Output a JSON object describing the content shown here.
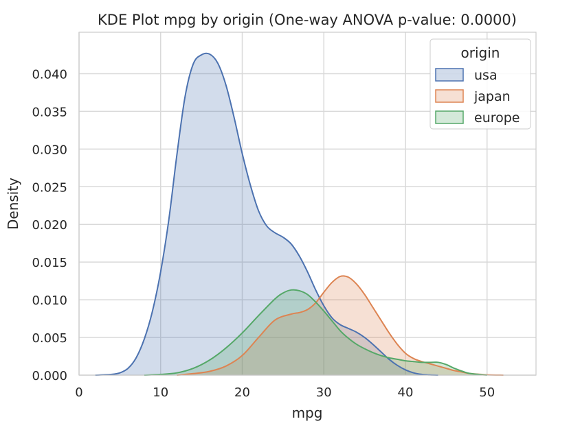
{
  "chart_data": {
    "type": "area",
    "title": "KDE Plot mpg by origin (One-way ANOVA p-value: 0.0000)",
    "xlabel": "mpg",
    "ylabel": "Density",
    "xlim": [
      0,
      56
    ],
    "ylim": [
      0,
      0.0455
    ],
    "xticks": [
      "0",
      "10",
      "20",
      "30",
      "40",
      "50"
    ],
    "yticks": [
      "0.000",
      "0.005",
      "0.010",
      "0.015",
      "0.020",
      "0.025",
      "0.030",
      "0.035",
      "0.040"
    ],
    "grid": true,
    "legend": {
      "title": "origin",
      "position": "top-right"
    },
    "series": [
      {
        "name": "usa",
        "color": "#4c72b0",
        "x": [
          2,
          4,
          5,
          6,
          7,
          8,
          9,
          10,
          11,
          12,
          13,
          14,
          15,
          16,
          17,
          18,
          19,
          20,
          21,
          22,
          23,
          24,
          25,
          26,
          27,
          28,
          29,
          30,
          31,
          32,
          33,
          34,
          35,
          36,
          37,
          38,
          39,
          40,
          41,
          42,
          43,
          44
        ],
        "y": [
          0.0,
          0.0001,
          0.0003,
          0.0009,
          0.0023,
          0.0048,
          0.0085,
          0.0137,
          0.0206,
          0.0293,
          0.037,
          0.0413,
          0.0425,
          0.0426,
          0.0414,
          0.0385,
          0.0342,
          0.0294,
          0.0252,
          0.0218,
          0.0198,
          0.0189,
          0.0183,
          0.0174,
          0.0158,
          0.0137,
          0.0113,
          0.0092,
          0.0076,
          0.0067,
          0.0062,
          0.0057,
          0.005,
          0.0041,
          0.0031,
          0.0021,
          0.0013,
          0.0007,
          0.0003,
          0.0001,
          3e-05,
          0.0
        ]
      },
      {
        "name": "japan",
        "color": "#dd8452",
        "x": [
          12,
          14,
          16,
          18,
          20,
          22,
          24,
          26,
          27,
          28,
          29,
          30,
          31,
          32,
          33,
          34,
          35,
          36,
          37,
          38,
          39,
          40,
          41,
          42,
          43,
          44,
          45,
          46,
          47,
          48,
          50,
          52
        ],
        "y": [
          0.0,
          0.0002,
          0.0005,
          0.0012,
          0.0026,
          0.005,
          0.0073,
          0.0081,
          0.0083,
          0.0087,
          0.0096,
          0.011,
          0.0123,
          0.0131,
          0.013,
          0.0121,
          0.0107,
          0.009,
          0.0073,
          0.0056,
          0.0041,
          0.0029,
          0.0022,
          0.0018,
          0.0015,
          0.0012,
          0.0009,
          0.0006,
          0.0004,
          0.0002,
          5e-05,
          0.0
        ]
      },
      {
        "name": "europe",
        "color": "#55a868",
        "x": [
          8,
          10,
          12,
          14,
          16,
          18,
          20,
          22,
          24,
          25,
          26,
          27,
          28,
          29,
          30,
          31,
          32,
          33,
          34,
          35,
          36,
          37,
          38,
          39,
          40,
          41,
          42,
          43,
          44,
          45,
          46,
          47,
          48,
          50
        ],
        "y": [
          0.0,
          0.0001,
          0.0003,
          0.0009,
          0.002,
          0.0036,
          0.0056,
          0.0079,
          0.0101,
          0.0109,
          0.0113,
          0.0112,
          0.0107,
          0.0097,
          0.0085,
          0.0072,
          0.0059,
          0.0049,
          0.0041,
          0.0035,
          0.003,
          0.0026,
          0.0023,
          0.0021,
          0.0019,
          0.0018,
          0.0017,
          0.0017,
          0.0017,
          0.0014,
          0.0009,
          0.0005,
          0.0002,
          0.0
        ]
      }
    ]
  }
}
